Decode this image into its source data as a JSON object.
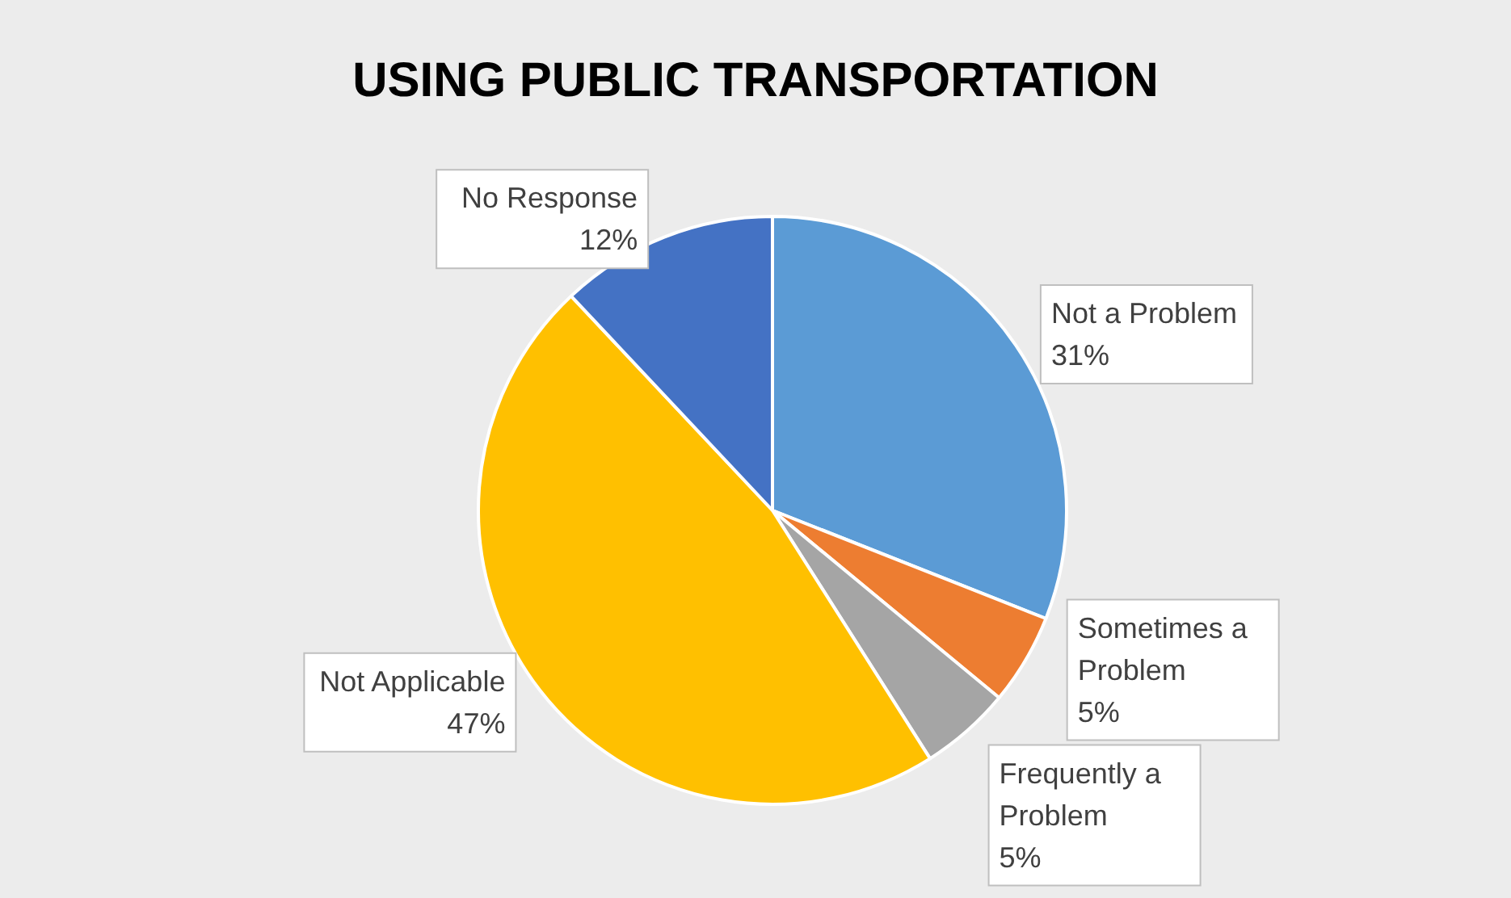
{
  "chart_data": {
    "type": "pie",
    "title": "USING PUBLIC TRANSPORTATION",
    "categories": [
      "Not a Problem",
      "Sometimes a Problem",
      "Frequently a Problem",
      "Not Applicable",
      "No Response"
    ],
    "values": [
      31,
      5,
      5,
      47,
      12
    ],
    "colors": [
      "#5b9bd5",
      "#ed7d31",
      "#a5a5a5",
      "#ffc000",
      "#4472c4"
    ],
    "value_labels": [
      "31%",
      "5%",
      "5%",
      "47%",
      "12%"
    ],
    "data_labels": true,
    "legend": false
  }
}
